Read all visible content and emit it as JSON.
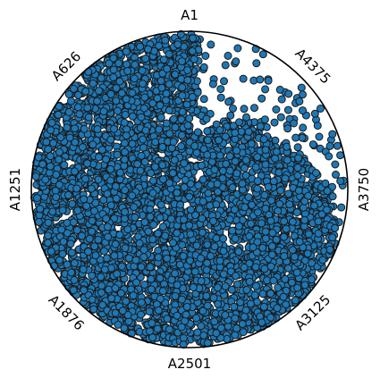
{
  "chart_data": {
    "type": "scatter",
    "projection": "polar",
    "theta_zero_location": "top",
    "theta_direction": "counterclockwise",
    "theta_tick_labels": [
      "A1",
      "A626",
      "A1251",
      "A1876",
      "A2501",
      "A3125",
      "A3750",
      "A4375"
    ],
    "grid": false,
    "legend": "none",
    "point_count": 5000,
    "marker_colors": {
      "fill": "#1f77b4",
      "edge": "#1a1a1a"
    },
    "density_profile": [
      {
        "theta_range": "A1 to A2501 (left half)",
        "fill": "dense, reaching the outer rim"
      },
      {
        "theta_range": "A2501 to A3125",
        "fill": "dense, thins slightly toward the rim"
      },
      {
        "theta_range": "A3125 to A3750",
        "fill": "medium, scattered points near the rim"
      },
      {
        "theta_range": "A3750 to A4375",
        "fill": "sparse, gap near the rim"
      },
      {
        "theta_range": "A4375 to A1",
        "fill": "sparse near the rim, few points near top"
      }
    ]
  }
}
